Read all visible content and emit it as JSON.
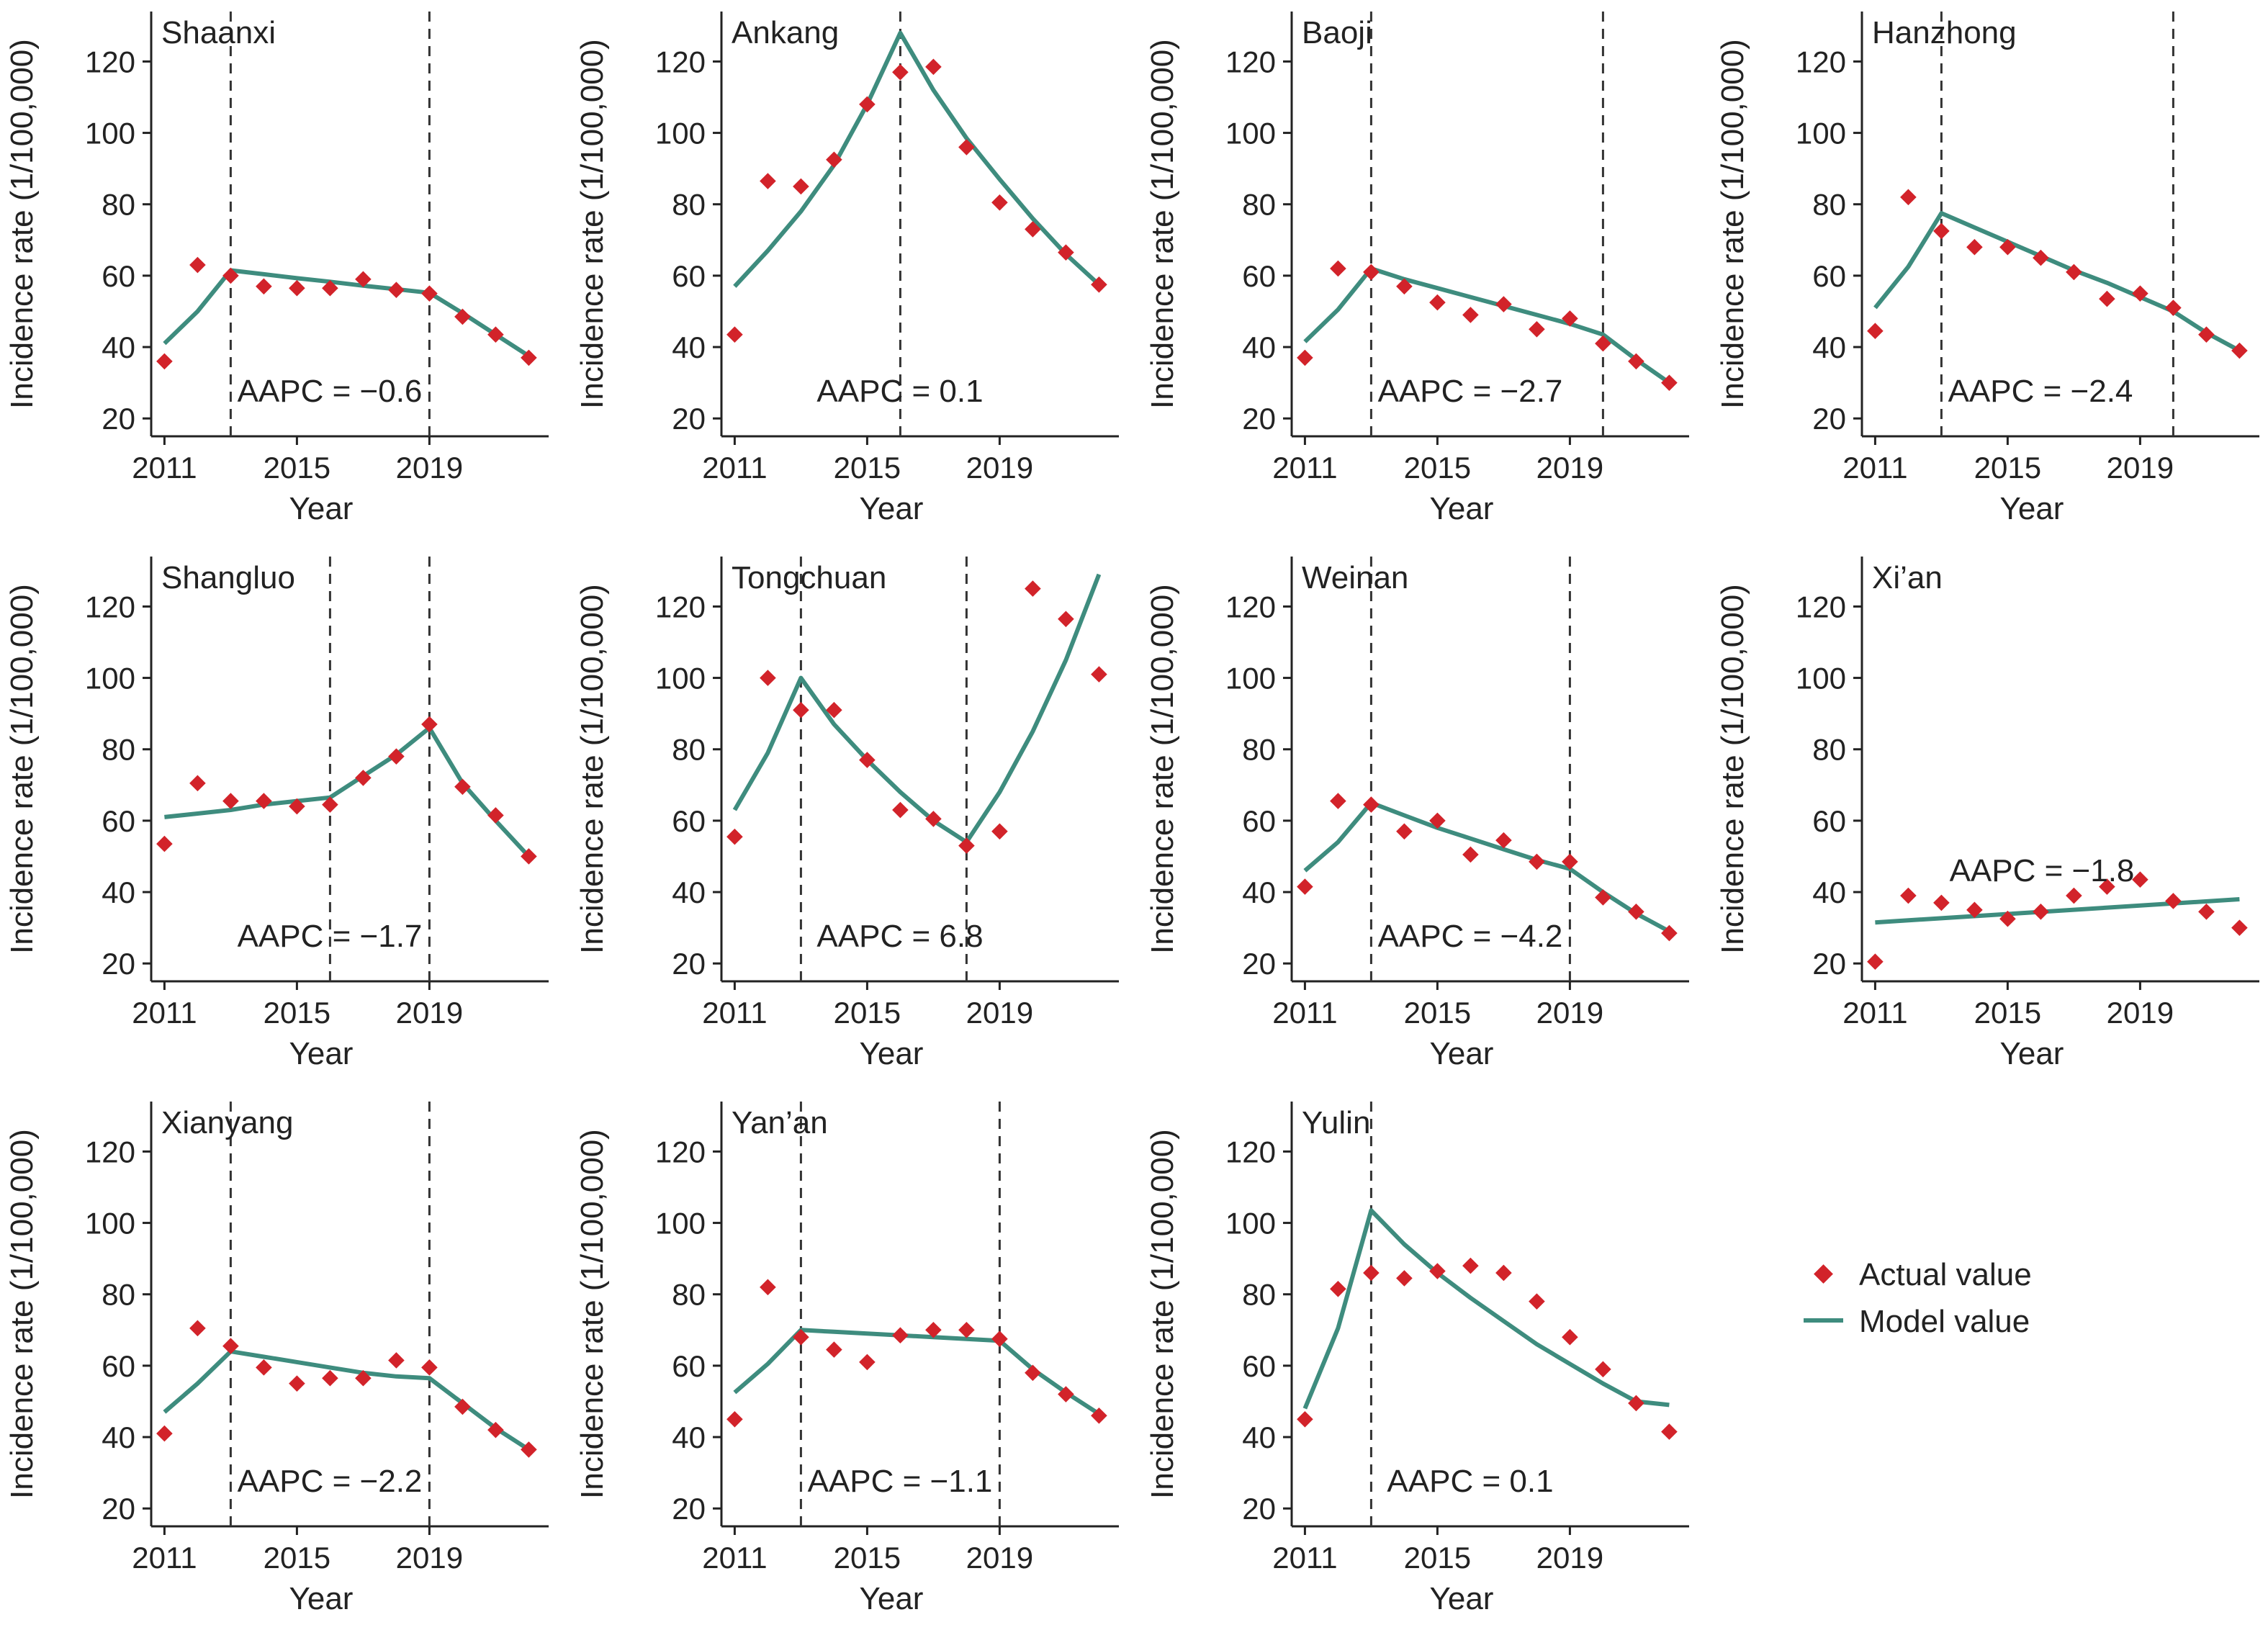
{
  "legend": {
    "actual": "Actual value",
    "model": "Model value"
  },
  "colors": {
    "actual_marker": "#d2232a",
    "model_line": "#3e8c7e",
    "axis": "#222222"
  },
  "chart_data": [
    {
      "type": "line",
      "title": "Shaanxi",
      "annotation": "AAPC = −0.6",
      "xlabel": "Year",
      "ylabel": "Incidence rate (1/100,000)",
      "xticks": [
        2011,
        2015,
        2019
      ],
      "yticks": [
        20,
        40,
        60,
        80,
        100,
        120
      ],
      "xlim": [
        2010.6,
        2022.6
      ],
      "ylim": [
        15,
        134
      ],
      "joinpoints": [
        2013,
        2019
      ],
      "series": [
        {
          "name": "Actual value",
          "x": [
            2011,
            2012,
            2013,
            2014,
            2015,
            2016,
            2017,
            2018,
            2019,
            2020,
            2021,
            2022
          ],
          "values": [
            36,
            63,
            60,
            57,
            56.5,
            56.5,
            59,
            56,
            55,
            48.5,
            43.5,
            37
          ]
        },
        {
          "name": "Model value",
          "x": [
            2011,
            2012,
            2013,
            2014,
            2015,
            2016,
            2017,
            2018,
            2019,
            2020,
            2021,
            2022
          ],
          "values": [
            41,
            50,
            61.5,
            60.4,
            59.3,
            58.3,
            57.2,
            56.2,
            55.2,
            49.5,
            43.5,
            37.5
          ]
        }
      ]
    },
    {
      "type": "line",
      "title": "Ankang",
      "annotation": "AAPC = 0.1",
      "xlabel": "Year",
      "ylabel": "Incidence rate (1/100,000)",
      "xticks": [
        2011,
        2015,
        2019
      ],
      "yticks": [
        20,
        40,
        60,
        80,
        100,
        120
      ],
      "xlim": [
        2010.6,
        2022.6
      ],
      "ylim": [
        15,
        134
      ],
      "joinpoints": [
        2016
      ],
      "series": [
        {
          "name": "Actual value",
          "x": [
            2011,
            2012,
            2013,
            2014,
            2015,
            2016,
            2017,
            2018,
            2019,
            2020,
            2021,
            2022
          ],
          "values": [
            43.5,
            86.5,
            85,
            92.5,
            108,
            117,
            118.5,
            96,
            80.5,
            73,
            66.5,
            57.5
          ]
        },
        {
          "name": "Model value",
          "x": [
            2011,
            2012,
            2013,
            2014,
            2015,
            2016,
            2017,
            2018,
            2019,
            2020,
            2021,
            2022
          ],
          "values": [
            57,
            67,
            78,
            91,
            108,
            128,
            112,
            98.5,
            87,
            76,
            66,
            57.5
          ]
        }
      ]
    },
    {
      "type": "line",
      "title": "Baoji",
      "annotation": "AAPC = −2.7",
      "xlabel": "Year",
      "ylabel": "Incidence rate (1/100,000)",
      "xticks": [
        2011,
        2015,
        2019
      ],
      "yticks": [
        20,
        40,
        60,
        80,
        100,
        120
      ],
      "xlim": [
        2010.6,
        2022.6
      ],
      "ylim": [
        15,
        134
      ],
      "joinpoints": [
        2013,
        2020
      ],
      "series": [
        {
          "name": "Actual value",
          "x": [
            2011,
            2012,
            2013,
            2014,
            2015,
            2016,
            2017,
            2018,
            2019,
            2020,
            2021,
            2022
          ],
          "values": [
            37,
            62,
            61,
            57,
            52.5,
            49,
            52,
            45,
            48,
            41,
            36,
            30
          ]
        },
        {
          "name": "Model value",
          "x": [
            2011,
            2012,
            2013,
            2014,
            2015,
            2016,
            2017,
            2018,
            2019,
            2020,
            2021,
            2022
          ],
          "values": [
            41.5,
            50.5,
            62,
            59,
            56.5,
            54,
            51.5,
            49,
            46.5,
            43.5,
            36.5,
            30
          ]
        }
      ]
    },
    {
      "type": "line",
      "title": "Hanzhong",
      "annotation": "AAPC = −2.4",
      "xlabel": "Year",
      "ylabel": "Incidence rate (1/100,000)",
      "xticks": [
        2011,
        2015,
        2019
      ],
      "yticks": [
        20,
        40,
        60,
        80,
        100,
        120
      ],
      "xlim": [
        2010.6,
        2022.6
      ],
      "ylim": [
        15,
        134
      ],
      "joinpoints": [
        2013,
        2020
      ],
      "series": [
        {
          "name": "Actual value",
          "x": [
            2011,
            2012,
            2013,
            2014,
            2015,
            2016,
            2017,
            2018,
            2019,
            2020,
            2021,
            2022
          ],
          "values": [
            44.5,
            82,
            72.5,
            68,
            68,
            65,
            61,
            53.5,
            55,
            51,
            43.5,
            39
          ]
        },
        {
          "name": "Model value",
          "x": [
            2011,
            2012,
            2013,
            2014,
            2015,
            2016,
            2017,
            2018,
            2019,
            2020,
            2021,
            2022
          ],
          "values": [
            51,
            62.5,
            77.5,
            73.5,
            69.5,
            65.5,
            61.5,
            58,
            54,
            50,
            44,
            39
          ]
        }
      ]
    },
    {
      "type": "line",
      "title": "Shangluo",
      "annotation": "AAPC = −1.7",
      "xlabel": "Year",
      "ylabel": "Incidence rate (1/100,000)",
      "xticks": [
        2011,
        2015,
        2019
      ],
      "yticks": [
        20,
        40,
        60,
        80,
        100,
        120
      ],
      "xlim": [
        2010.6,
        2022.6
      ],
      "ylim": [
        15,
        134
      ],
      "joinpoints": [
        2016,
        2019
      ],
      "series": [
        {
          "name": "Actual value",
          "x": [
            2011,
            2012,
            2013,
            2014,
            2015,
            2016,
            2017,
            2018,
            2019,
            2020,
            2021,
            2022
          ],
          "values": [
            53.5,
            70.5,
            65.5,
            65.5,
            64,
            64.5,
            72,
            78,
            87,
            69.5,
            61.5,
            50
          ]
        },
        {
          "name": "Model value",
          "x": [
            2011,
            2012,
            2013,
            2014,
            2015,
            2016,
            2017,
            2018,
            2019,
            2020,
            2021,
            2022
          ],
          "values": [
            61,
            62,
            63,
            64.5,
            65.5,
            66.5,
            72.5,
            78.5,
            86,
            70.5,
            60,
            50
          ]
        }
      ]
    },
    {
      "type": "line",
      "title": "Tongchuan",
      "annotation": "AAPC = 6.8",
      "xlabel": "Year",
      "ylabel": "Incidence rate (1/100,000)",
      "xticks": [
        2011,
        2015,
        2019
      ],
      "yticks": [
        20,
        40,
        60,
        80,
        100,
        120
      ],
      "xlim": [
        2010.6,
        2022.6
      ],
      "ylim": [
        15,
        134
      ],
      "joinpoints": [
        2013,
        2018
      ],
      "series": [
        {
          "name": "Actual value",
          "x": [
            2011,
            2012,
            2013,
            2014,
            2015,
            2016,
            2017,
            2018,
            2019,
            2020,
            2021,
            2022
          ],
          "values": [
            55.5,
            100,
            91,
            91,
            77,
            63,
            60.5,
            53,
            57,
            125,
            116.5,
            101
          ]
        },
        {
          "name": "Model value",
          "x": [
            2011,
            2012,
            2013,
            2014,
            2015,
            2016,
            2017,
            2018,
            2019,
            2020,
            2021,
            2022
          ],
          "values": [
            63,
            79,
            100,
            87,
            77,
            68,
            60,
            54,
            68,
            85,
            105,
            129
          ]
        }
      ]
    },
    {
      "type": "line",
      "title": "Weinan",
      "annotation": "AAPC = −4.2",
      "xlabel": "Year",
      "ylabel": "Incidence rate (1/100,000)",
      "xticks": [
        2011,
        2015,
        2019
      ],
      "yticks": [
        20,
        40,
        60,
        80,
        100,
        120
      ],
      "xlim": [
        2010.6,
        2022.6
      ],
      "ylim": [
        15,
        134
      ],
      "joinpoints": [
        2013,
        2019
      ],
      "series": [
        {
          "name": "Actual value",
          "x": [
            2011,
            2012,
            2013,
            2014,
            2015,
            2016,
            2017,
            2018,
            2019,
            2020,
            2021,
            2022
          ],
          "values": [
            41.5,
            65.5,
            64.5,
            57,
            60,
            50.5,
            54.5,
            48.5,
            48.5,
            38.5,
            34.5,
            28.5
          ]
        },
        {
          "name": "Model value",
          "x": [
            2011,
            2012,
            2013,
            2014,
            2015,
            2016,
            2017,
            2018,
            2019,
            2020,
            2021,
            2022
          ],
          "values": [
            46,
            54,
            65,
            61.5,
            58,
            55,
            52,
            49,
            46.5,
            40,
            34,
            29
          ]
        }
      ]
    },
    {
      "type": "line",
      "title": "Xi’an",
      "annotation": "AAPC = −1.8",
      "xlabel": "Year",
      "ylabel": "Incidence rate (1/100,000)",
      "xticks": [
        2011,
        2015,
        2019
      ],
      "yticks": [
        20,
        40,
        60,
        80,
        100,
        120
      ],
      "xlim": [
        2010.6,
        2022.6
      ],
      "ylim": [
        15,
        134
      ],
      "joinpoints": [],
      "series": [
        {
          "name": "Actual value",
          "x": [
            2011,
            2012,
            2013,
            2014,
            2015,
            2016,
            2017,
            2018,
            2019,
            2020,
            2021,
            2022
          ],
          "values": [
            20.5,
            39,
            37,
            35,
            32.5,
            34.5,
            39,
            41.5,
            43.5,
            37.5,
            34.5,
            30
          ]
        },
        {
          "name": "Model value",
          "x": [
            2011,
            2022
          ],
          "values": [
            31.5,
            38
          ]
        }
      ]
    },
    {
      "type": "line",
      "title": "Xianyang",
      "annotation": "AAPC = −2.2",
      "xlabel": "Year",
      "ylabel": "Incidence rate (1/100,000)",
      "xticks": [
        2011,
        2015,
        2019
      ],
      "yticks": [
        20,
        40,
        60,
        80,
        100,
        120
      ],
      "xlim": [
        2010.6,
        2022.6
      ],
      "ylim": [
        15,
        134
      ],
      "joinpoints": [
        2013,
        2019
      ],
      "series": [
        {
          "name": "Actual value",
          "x": [
            2011,
            2012,
            2013,
            2014,
            2015,
            2016,
            2017,
            2018,
            2019,
            2020,
            2021,
            2022
          ],
          "values": [
            41,
            70.5,
            65.5,
            59.5,
            55,
            56.5,
            56.5,
            61.5,
            59.5,
            48.5,
            42,
            36.5
          ]
        },
        {
          "name": "Model value",
          "x": [
            2011,
            2012,
            2013,
            2014,
            2015,
            2016,
            2017,
            2018,
            2019,
            2020,
            2021,
            2022
          ],
          "values": [
            47,
            55,
            64,
            62.5,
            61,
            59.5,
            58,
            57,
            56.5,
            49.5,
            42.5,
            36.5
          ]
        }
      ]
    },
    {
      "type": "line",
      "title": "Yan’an",
      "annotation": "AAPC = −1.1",
      "xlabel": "Year",
      "ylabel": "Incidence rate (1/100,000)",
      "xticks": [
        2011,
        2015,
        2019
      ],
      "yticks": [
        20,
        40,
        60,
        80,
        100,
        120
      ],
      "xlim": [
        2010.6,
        2022.6
      ],
      "ylim": [
        15,
        134
      ],
      "joinpoints": [
        2013,
        2019
      ],
      "series": [
        {
          "name": "Actual value",
          "x": [
            2011,
            2012,
            2013,
            2014,
            2015,
            2016,
            2017,
            2018,
            2019,
            2020,
            2021,
            2022
          ],
          "values": [
            45,
            82,
            68,
            64.5,
            61,
            68.5,
            70,
            70,
            67.5,
            58,
            52,
            46
          ]
        },
        {
          "name": "Model value",
          "x": [
            2011,
            2012,
            2013,
            2014,
            2015,
            2016,
            2017,
            2018,
            2019,
            2020,
            2021,
            2022
          ],
          "values": [
            52.5,
            60.5,
            70,
            69.5,
            69,
            68.5,
            68,
            67.5,
            67,
            59,
            52.5,
            46.5
          ]
        }
      ]
    },
    {
      "type": "line",
      "title": "Yulin",
      "annotation": "AAPC = 0.1",
      "xlabel": "Year",
      "ylabel": "Incidence rate (1/100,000)",
      "xticks": [
        2011,
        2015,
        2019
      ],
      "yticks": [
        20,
        40,
        60,
        80,
        100,
        120
      ],
      "xlim": [
        2010.6,
        2022.6
      ],
      "ylim": [
        15,
        134
      ],
      "joinpoints": [
        2013
      ],
      "series": [
        {
          "name": "Actual value",
          "x": [
            2011,
            2012,
            2013,
            2014,
            2015,
            2016,
            2017,
            2018,
            2019,
            2020,
            2021,
            2022
          ],
          "values": [
            45,
            81.5,
            86,
            84.5,
            86.5,
            88,
            86,
            78,
            68,
            59,
            49.5,
            41.5
          ]
        },
        {
          "name": "Model value",
          "x": [
            2011,
            2012,
            2013,
            2014,
            2015,
            2016,
            2017,
            2018,
            2019,
            2020,
            2021,
            2022
          ],
          "values": [
            48,
            70.5,
            103.5,
            94,
            86,
            79,
            72.5,
            66,
            60.5,
            55,
            50,
            49
          ]
        }
      ]
    }
  ]
}
